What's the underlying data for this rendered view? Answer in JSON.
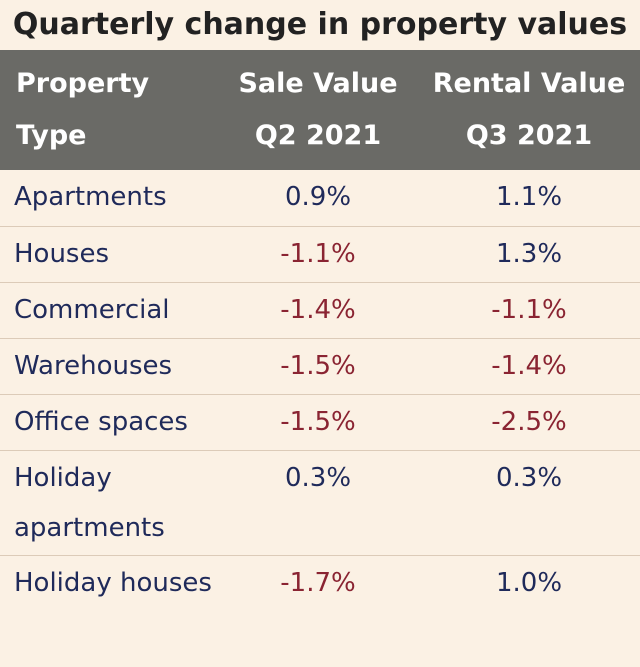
{
  "chart_data": {
    "type": "table",
    "title": "Quarterly change in property values",
    "columns": [
      "Property Type",
      "Sale Value Q2 2021",
      "Rental Value Q3 2021"
    ],
    "header": {
      "col1": [
        "Property",
        "Type"
      ],
      "col2": [
        "Sale Value",
        "Q2 2021"
      ],
      "col3": [
        "Rental Value",
        "Q3 2021"
      ]
    },
    "rows": [
      {
        "type": "Apartments",
        "sale": "0.9%",
        "rental": "1.1%"
      },
      {
        "type": "Houses",
        "sale": "-1.1%",
        "rental": "1.3%"
      },
      {
        "type": "Commercial",
        "sale": "-1.4%",
        "rental": "-1.1%"
      },
      {
        "type": "Warehouses",
        "sale": "-1.5%",
        "rental": "-1.4%"
      },
      {
        "type": "Office spaces",
        "sale": "-1.5%",
        "rental": "-2.5%"
      },
      {
        "type": "Holiday apartments",
        "sale": "0.3%",
        "rental": "0.3%"
      },
      {
        "type": "Holiday houses",
        "sale": "-1.7%",
        "rental": "1.0%"
      }
    ],
    "colors": {
      "header_bg": "#6a6a66",
      "page_bg": "#fbf1e4",
      "positive_text": "#1f2a5a",
      "negative_text": "#8a2432"
    }
  }
}
